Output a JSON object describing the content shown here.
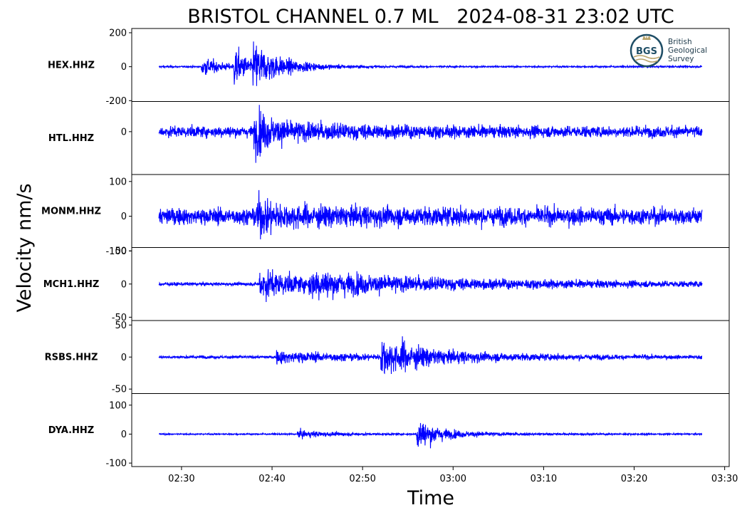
{
  "chart_data": {
    "type": "line",
    "title": "BRISTOL CHANNEL 0.7 ML   2024-08-31 23:02 UTC",
    "xlabel": "Time",
    "ylabel": "Velocity nm/s",
    "x_ticks": [
      "02:30",
      "02:40",
      "02:50",
      "03:00",
      "03:10",
      "03:20",
      "03:30"
    ],
    "x_tick_minutes": [
      30,
      40,
      50,
      60,
      70,
      80,
      90
    ],
    "xlim_minutes": [
      24.5,
      90.5
    ],
    "trace_start_minutes": 27.5,
    "trace_end_minutes": 87.5,
    "line_color": "#0000ff",
    "grid": false,
    "series": [
      {
        "name": "HEX.HHZ",
        "ylim": [
          -205,
          225
        ],
        "y_ticks": [
          {
            "value": 200,
            "label": "200"
          },
          {
            "value": 0,
            "label": "0"
          },
          {
            "value": -200,
            "label": "-200"
          }
        ],
        "noise": 8,
        "events": [
          {
            "t": 32.2,
            "amp": 95,
            "decay": 2.2
          },
          {
            "t": 35.8,
            "amp": 190,
            "decay": 1.4
          },
          {
            "t": 37.9,
            "amp": 190,
            "decay": 3.5
          }
        ]
      },
      {
        "name": "HTL.HHZ",
        "ylim": [
          -135,
          95
        ],
        "y_ticks": [
          {
            "value": 0,
            "label": "0"
          }
        ],
        "noise": 28,
        "events": [
          {
            "t": 38.0,
            "amp": 75,
            "decay": 1.5
          },
          {
            "t": 38.2,
            "amp": 35,
            "decay": 10
          }
        ]
      },
      {
        "name": "MONM.HHZ",
        "ylim": [
          -90,
          120
        ],
        "y_ticks": [
          {
            "value": 100,
            "label": "100"
          },
          {
            "value": 0,
            "label": "0"
          },
          {
            "value": -100,
            "label": "-100"
          }
        ],
        "noise": 38,
        "events": [
          {
            "t": 38.3,
            "amp": 55,
            "decay": 1.3
          },
          {
            "t": 38.5,
            "amp": 22,
            "decay": 14
          }
        ]
      },
      {
        "name": "MCH1.HHZ",
        "ylim": [
          -55,
          55
        ],
        "y_ticks": [
          {
            "value": 50,
            "label": "50"
          },
          {
            "value": 0,
            "label": "0"
          },
          {
            "value": -50,
            "label": "-50"
          }
        ],
        "noise": 4,
        "events": [
          {
            "t": 38.6,
            "amp": 38,
            "decay": 5
          },
          {
            "t": 44.0,
            "amp": 22,
            "decay": 22
          }
        ]
      },
      {
        "name": "RSBS.HHZ",
        "ylim": [
          -57,
          57
        ],
        "y_ticks": [
          {
            "value": 50,
            "label": "50"
          },
          {
            "value": 0,
            "label": "0"
          },
          {
            "value": -50,
            "label": "-50"
          }
        ],
        "noise": 3.5,
        "events": [
          {
            "t": 40.5,
            "amp": 14,
            "decay": 9
          },
          {
            "t": 52.0,
            "amp": 50,
            "decay": 2.6
          },
          {
            "t": 54.0,
            "amp": 14,
            "decay": 14
          }
        ]
      },
      {
        "name": "DYA.HHZ",
        "ylim": [
          -112,
          140
        ],
        "y_ticks": [
          {
            "value": 100,
            "label": "100"
          },
          {
            "value": 0,
            "label": "0"
          },
          {
            "value": -100,
            "label": "-100"
          }
        ],
        "noise": 4,
        "events": [
          {
            "t": 42.8,
            "amp": 20,
            "decay": 4
          },
          {
            "t": 56.0,
            "amp": 115,
            "decay": 1.3
          },
          {
            "t": 57.5,
            "amp": 22,
            "decay": 6
          }
        ]
      }
    ]
  },
  "logo": {
    "initials": "BGS",
    "lines": [
      "British",
      "Geological",
      "Survey"
    ]
  }
}
